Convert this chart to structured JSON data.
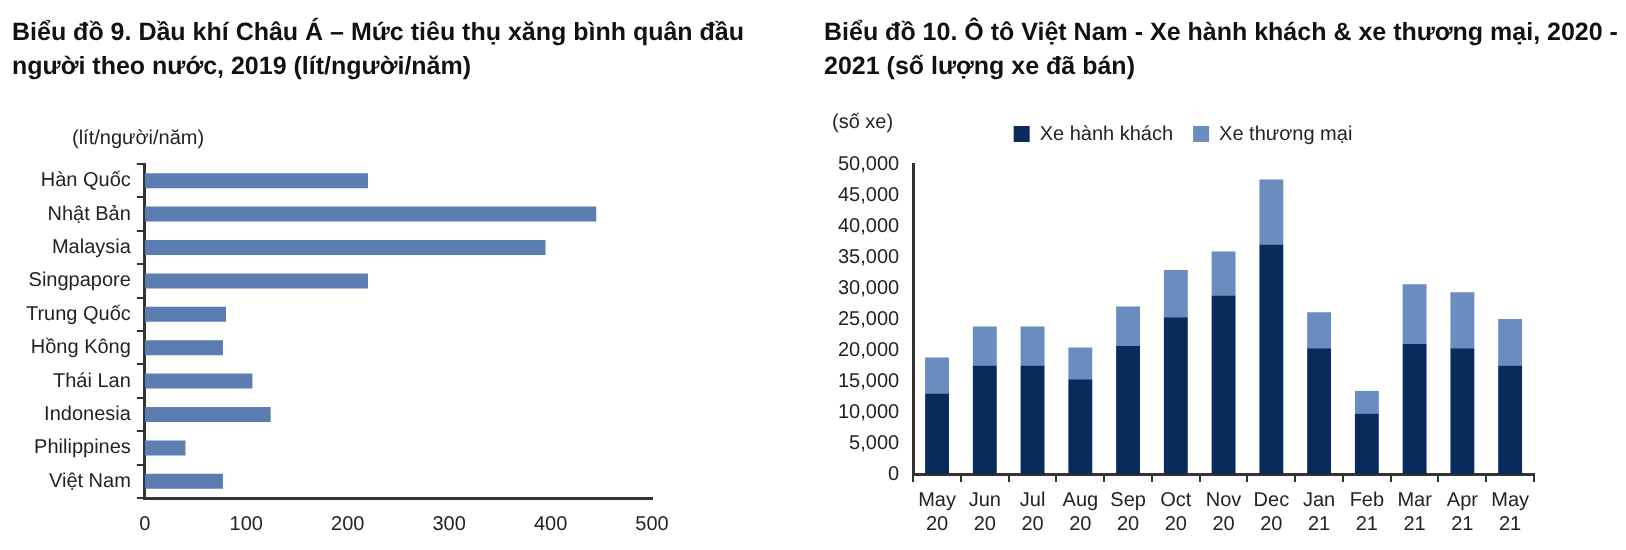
{
  "chart_data": [
    {
      "type": "bar",
      "orientation": "horizontal",
      "title": "Biểu đồ 9. Dầu khí Châu Á – Mức tiêu thụ xăng bình quân đầu người theo nước, 2019 (lít/người/năm)",
      "ylabel": "(lít/người/năm)",
      "categories": [
        "Hàn Quốc",
        "Nhật Bản",
        "Malaysia",
        "Singpapore",
        "Trung Quốc",
        "Hồng Kông",
        "Thái Lan",
        "Indonesia",
        "Philippines",
        "Việt Nam"
      ],
      "values": [
        220,
        445,
        395,
        220,
        80,
        77,
        106,
        124,
        40,
        77
      ],
      "color": "#5b7db1",
      "xlim": [
        0,
        500
      ],
      "xticks": [
        0,
        100,
        200,
        300,
        400,
        500
      ],
      "grid": false,
      "legend": false
    },
    {
      "type": "bar",
      "stacked": true,
      "title": "Biểu đồ 10. Ô tô Việt Nam - Xe hành khách & xe thương mại, 2020 - 2021 (số lượng xe đã bán)",
      "ylabel": "(số xe)",
      "categories": [
        "May 20",
        "Jun 20",
        "Jul 20",
        "Aug 20",
        "Sep 20",
        "Oct 20",
        "Nov 20",
        "Dec 20",
        "Jan 21",
        "Feb 21",
        "Mar 21",
        "Apr 21",
        "May 21"
      ],
      "series": [
        {
          "name": "Xe hành khách",
          "color": "#0b2a5c",
          "values": [
            13000,
            17500,
            17500,
            15300,
            20700,
            25300,
            28800,
            37000,
            20300,
            9700,
            21000,
            20300,
            17500
          ]
        },
        {
          "name": "Xe thương mại",
          "color": "#6a8cbf",
          "values": [
            5800,
            6300,
            6300,
            5100,
            6300,
            7600,
            7100,
            10500,
            5800,
            3700,
            9600,
            9000,
            7500
          ]
        }
      ],
      "ylim": [
        0,
        50000
      ],
      "yticks": [
        0,
        {
          "value": 5000,
          "label": "5,000"
        },
        {
          "value": 10000,
          "label": "10,000"
        },
        {
          "value": 15000,
          "label": "15,000"
        },
        {
          "value": 20000,
          "label": "20,000"
        },
        {
          "value": 25000,
          "label": "25,000"
        },
        {
          "value": 30000,
          "label": "30,000"
        },
        {
          "value": 35000,
          "label": "35,000"
        },
        {
          "value": 40000,
          "label": "40,000"
        },
        {
          "value": 45000,
          "label": "45,000"
        },
        {
          "value": 50000,
          "label": "50,000"
        }
      ],
      "grid": false,
      "legend": "top"
    }
  ]
}
